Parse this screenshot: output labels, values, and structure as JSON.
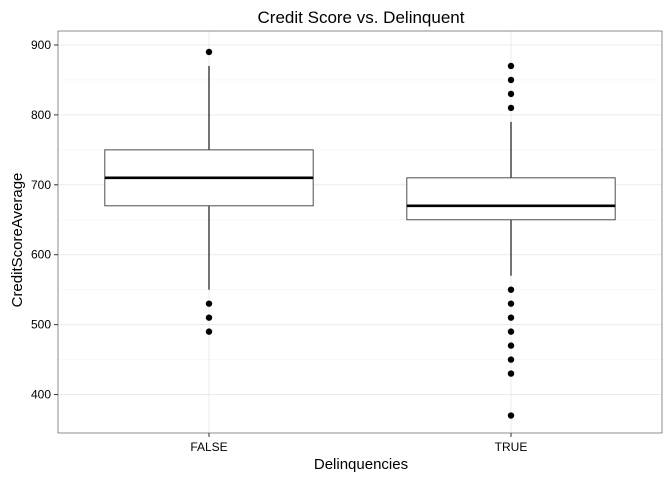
{
  "chart_data": {
    "type": "boxplot",
    "title": "Credit Score vs. Delinquent",
    "xlabel": "Delinquencies",
    "ylabel": "CreditScoreAverage",
    "ylim": [
      345,
      920
    ],
    "yticks": [
      400,
      500,
      600,
      700,
      800,
      900
    ],
    "grid": true,
    "categories": [
      "FALSE",
      "TRUE"
    ],
    "boxes": [
      {
        "category": "FALSE",
        "q1": 670,
        "median": 710,
        "q3": 750,
        "whisker_low": 550,
        "whisker_high": 870,
        "outliers": [
          890,
          530,
          510,
          490
        ]
      },
      {
        "category": "TRUE",
        "q1": 650,
        "median": 670,
        "q3": 710,
        "whisker_low": 570,
        "whisker_high": 790,
        "outliers": [
          870,
          850,
          830,
          810,
          550,
          530,
          510,
          490,
          470,
          450,
          430,
          370
        ]
      }
    ],
    "colors": {
      "panel_border": "#8c8c8c",
      "grid": "#ebebeb",
      "box_line": "#4d4d4d",
      "median": "#000000",
      "point": "#000000",
      "text": "#000000"
    }
  }
}
